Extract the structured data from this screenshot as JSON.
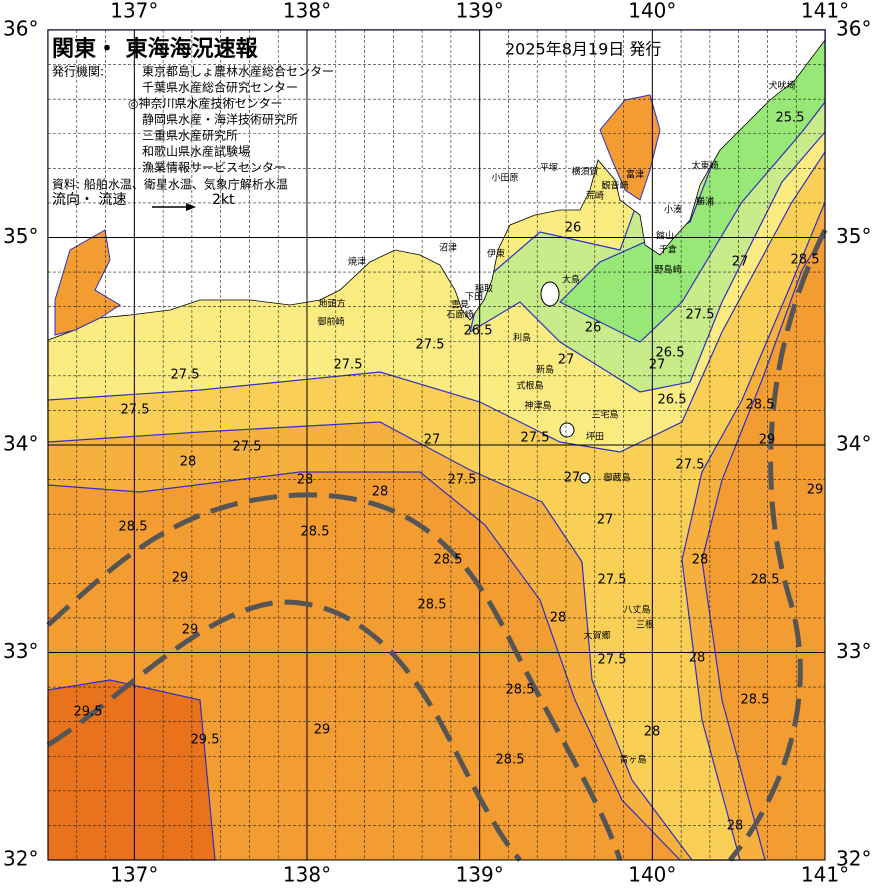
{
  "header": {
    "title": "関東・ 東海海況速報",
    "issue_date": "2025年8月19日 発行",
    "agency_label": "発行機関:",
    "agencies": [
      "東京都島しょ農林水産総合センター",
      "千葉県水産総合研究センター",
      "◎神奈川県水産技術センター",
      "静岡県水産・海洋技術研究所",
      "三重県水産研究所",
      "和歌山県水産試験場",
      "漁業情報サービスセンター"
    ],
    "source": "資料: 船舶水温、衛星水温、気象庁解析水温",
    "flow_label": "流向・ 流速",
    "flow_scale": "2kt"
  },
  "map": {
    "lon_range": [
      136.5,
      141
    ],
    "lat_range": [
      32,
      36
    ],
    "lon_ticks": [
      {
        "value": 137,
        "label": "137°"
      },
      {
        "value": 138,
        "label": "138°"
      },
      {
        "value": 139,
        "label": "139°"
      },
      {
        "value": 140,
        "label": "140°"
      },
      {
        "value": 141,
        "label": "141°"
      }
    ],
    "lat_ticks": [
      {
        "value": 32,
        "label": "32°"
      },
      {
        "value": 33,
        "label": "33°"
      },
      {
        "value": 34,
        "label": "34°"
      },
      {
        "value": 35,
        "label": "35°"
      },
      {
        "value": 36,
        "label": "36°"
      }
    ],
    "isotherm_labels": [
      "25.5",
      "26",
      "26",
      "26.5",
      "26.5",
      "26.5",
      "27",
      "27",
      "27",
      "27.5",
      "27",
      "27",
      "27",
      "27.5",
      "27.5",
      "27.5",
      "27.5",
      "27.5",
      "27.5",
      "27.5",
      "27.5",
      "27.5",
      "27.5",
      "28",
      "28",
      "28",
      "28",
      "28",
      "28",
      "28",
      "28",
      "28.5",
      "28.5",
      "28.5",
      "28.5",
      "28.5",
      "28.5",
      "28.5",
      "28.5",
      "28.5",
      "28.5",
      "29",
      "29",
      "29",
      "29",
      "29",
      "29.5",
      "29.5"
    ],
    "place_names": [
      "犬吠埼",
      "太東崎",
      "勝浦",
      "小湊",
      "千倉",
      "野島崎",
      "館山",
      "富津",
      "観音崎",
      "荒崎",
      "横須賀",
      "平塚",
      "小田原",
      "伊東",
      "稲取",
      "下田",
      "雲見",
      "石廊崎",
      "沼津",
      "焼津",
      "地頭方",
      "御前崎",
      "大島",
      "利島",
      "新島",
      "式根島",
      "神津島",
      "三宅島",
      "坪田",
      "御蔵島",
      "八丈島",
      "三根",
      "大賀郷",
      "青ヶ島"
    ]
  }
}
